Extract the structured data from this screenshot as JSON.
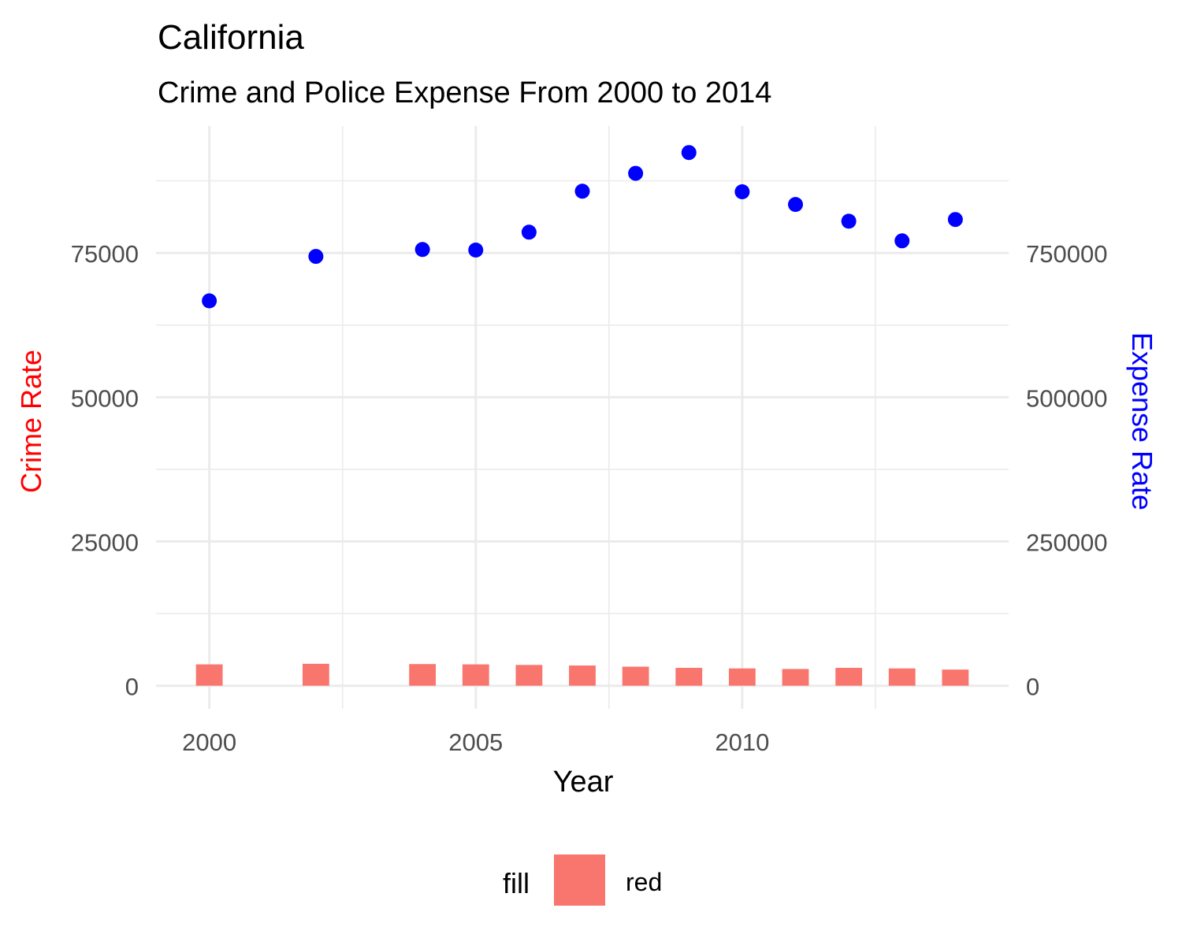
{
  "chart_data": {
    "type": "bar",
    "title": "California",
    "subtitle": "Crime and Police Expense From 2000 to 2014",
    "xlabel": "Year",
    "ylabel_left": "Crime Rate",
    "ylabel_right": "Expense Rate",
    "x_ticks": [
      2000,
      2005,
      2010
    ],
    "x_range": [
      1999,
      2015
    ],
    "left_y_ticks": [
      0,
      25000,
      50000,
      75000
    ],
    "right_y_ticks": [
      0,
      250000,
      500000,
      750000
    ],
    "left_ylim": [
      -4000,
      97000
    ],
    "secondary_axis_factor": 10,
    "grid": true,
    "legend": {
      "position": "bottom",
      "title": "fill",
      "entries": [
        "red"
      ]
    },
    "colors": {
      "bar": "#F8766D",
      "point": "#0000FF",
      "left_axis_title": "#FF0000",
      "right_axis_title": "#0000FF",
      "grid": "#EBEBEB",
      "tick_label": "#4D4D4D"
    },
    "series": [
      {
        "type": "bar",
        "axis": "left",
        "x": [
          2000,
          2002,
          2004,
          2005,
          2006,
          2007,
          2008,
          2009,
          2010,
          2011,
          2012,
          2013,
          2014
        ],
        "values": [
          3700,
          3800,
          3750,
          3700,
          3600,
          3500,
          3300,
          3100,
          3000,
          2900,
          3100,
          3000,
          2800
        ]
      },
      {
        "type": "scatter",
        "axis": "right",
        "x": [
          2000,
          2002,
          2004,
          2005,
          2006,
          2007,
          2008,
          2009,
          2010,
          2011,
          2012,
          2013,
          2014
        ],
        "values": [
          667000,
          744000,
          756000,
          755000,
          786000,
          857000,
          888000,
          924000,
          856000,
          834000,
          805000,
          771000,
          808000
        ]
      }
    ]
  }
}
